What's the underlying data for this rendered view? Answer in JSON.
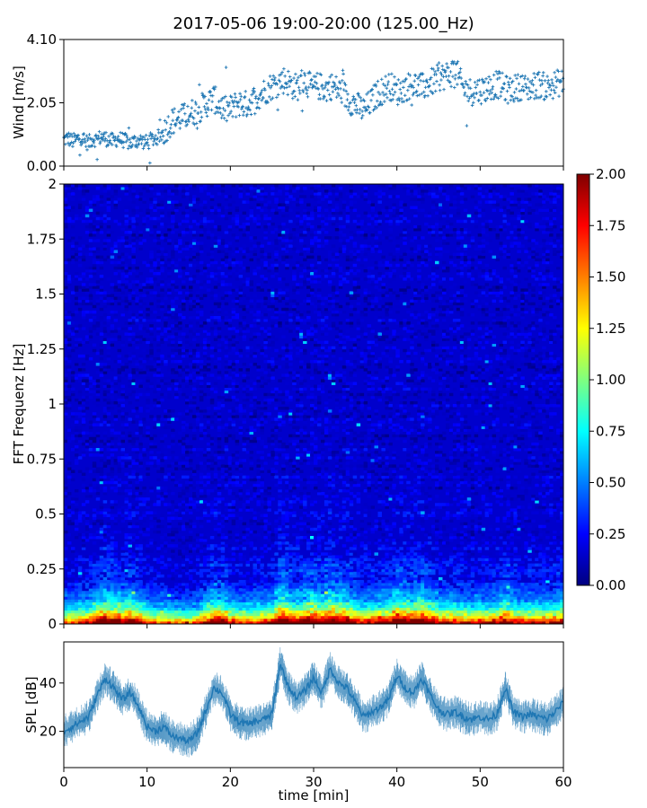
{
  "figure": {
    "title": "2017-05-06 19:00-20:00 (125.00_Hz)"
  },
  "chart_data": [
    {
      "type": "scatter",
      "panel": "wind",
      "ylabel": "Wind [m/s]",
      "xlim": [
        0,
        60
      ],
      "ylim": [
        0,
        4.1
      ],
      "yticks": [
        "0.00",
        "2.05",
        "4.10"
      ],
      "y_tick_values": [
        0,
        2.05,
        4.1
      ],
      "marker": "plus",
      "color": "#1f77b4",
      "x": [
        0,
        0.5,
        1,
        1.5,
        2,
        2.5,
        3,
        3.5,
        4,
        4.5,
        5,
        5.5,
        6,
        6.5,
        7,
        7.5,
        8,
        8.5,
        9,
        9.5,
        10,
        10.5,
        11,
        11.5,
        12,
        12.5,
        13,
        13.5,
        14,
        14.5,
        15,
        15.5,
        16,
        16.5,
        17,
        17.5,
        18,
        18.5,
        19,
        19.5,
        20,
        20.5,
        21,
        21.5,
        22,
        22.5,
        23,
        23.5,
        24,
        24.5,
        25,
        25.5,
        26,
        26.5,
        27,
        27.5,
        28,
        28.5,
        29,
        29.5,
        30,
        30.5,
        31,
        31.5,
        32,
        32.5,
        33,
        33.5,
        34,
        34.5,
        35,
        35.5,
        36,
        36.5,
        37,
        37.5,
        38,
        38.5,
        39,
        39.5,
        40,
        40.5,
        41,
        41.5,
        42,
        42.5,
        43,
        43.5,
        44,
        44.5,
        45,
        45.5,
        46,
        46.5,
        47,
        47.5,
        48,
        48.5,
        49,
        49.5,
        50,
        50.5,
        51,
        51.5,
        52,
        52.5,
        53,
        53.5,
        54,
        54.5,
        55,
        55.5,
        56,
        56.5,
        57,
        57.5,
        58,
        58.5,
        59,
        59.5,
        60
      ],
      "y": [
        0.85,
        0.9,
        0.8,
        0.85,
        0.95,
        0.8,
        0.75,
        0.9,
        0.85,
        0.95,
        0.9,
        0.85,
        0.8,
        0.9,
        0.85,
        0.8,
        0.75,
        0.8,
        0.85,
        0.8,
        0.75,
        0.85,
        0.9,
        0.95,
        1.1,
        1.3,
        1.45,
        1.5,
        1.55,
        1.6,
        1.7,
        1.75,
        1.8,
        1.9,
        2.0,
        2.1,
        2.2,
        2.0,
        1.9,
        1.8,
        1.85,
        1.95,
        2.05,
        2.0,
        2.0,
        2.1,
        2.2,
        2.3,
        2.4,
        2.5,
        2.6,
        2.65,
        2.75,
        2.8,
        2.7,
        2.6,
        2.55,
        2.7,
        2.8,
        2.6,
        2.5,
        2.6,
        2.55,
        2.5,
        2.6,
        2.55,
        2.45,
        2.4,
        2.2,
        2.1,
        2.0,
        1.9,
        1.8,
        1.95,
        2.1,
        2.3,
        2.4,
        2.5,
        2.6,
        2.55,
        2.4,
        2.45,
        2.55,
        2.6,
        2.65,
        2.6,
        2.55,
        2.6,
        2.7,
        2.75,
        2.85,
        2.9,
        2.95,
        3.0,
        3.2,
        2.8,
        2.5,
        2.45,
        2.4,
        2.5,
        2.45,
        2.5,
        2.55,
        2.6,
        2.65,
        2.6,
        2.5,
        2.45,
        2.5,
        2.55,
        2.6,
        2.5,
        2.55,
        2.6,
        2.65,
        2.6,
        2.55,
        2.6,
        2.65,
        2.7,
        2.7
      ]
    },
    {
      "type": "heatmap",
      "panel": "spectrogram",
      "ylabel": "FFT Frequenz [Hz]",
      "xlim": [
        0,
        60
      ],
      "ylim": [
        0,
        2
      ],
      "yticks": [
        "0",
        "0.25",
        "0.5",
        "0.75",
        "1",
        "1.25",
        "1.5",
        "1.75",
        "2"
      ],
      "y_tick_values": [
        0,
        0.25,
        0.5,
        0.75,
        1,
        1.25,
        1.5,
        1.75,
        2
      ],
      "colormap": "jet",
      "colorbar": {
        "range": [
          0,
          2
        ],
        "ticks": [
          "0.00",
          "0.25",
          "0.50",
          "0.75",
          "1.00",
          "1.25",
          "1.50",
          "1.75",
          "2.00"
        ],
        "tick_values": [
          0,
          0.25,
          0.5,
          0.75,
          1,
          1.25,
          1.5,
          1.75,
          2
        ],
        "stops": [
          "#00007f",
          "#0000ff",
          "#007fff",
          "#00ffff",
          "#7fff7f",
          "#ffff00",
          "#ff7f00",
          "#ff0000",
          "#7f0000"
        ]
      },
      "description_values": {
        "near_zero_hz_intensity": [
          1.5,
          2.0
        ],
        "high_frequency_intensity": [
          0.1,
          0.3
        ]
      }
    },
    {
      "type": "line",
      "panel": "spl",
      "ylabel": "SPL [dB]",
      "xlabel": "time [min]",
      "xlim": [
        0,
        60
      ],
      "ylim": [
        5,
        57
      ],
      "xticks": [
        "0",
        "10",
        "20",
        "30",
        "40",
        "50",
        "60"
      ],
      "x_tick_values": [
        0,
        10,
        20,
        30,
        40,
        50,
        60
      ],
      "yticks": [
        "20",
        "40"
      ],
      "y_tick_values": [
        20,
        40
      ],
      "color": "#1f77b4",
      "x": [
        0,
        1,
        2,
        3,
        4,
        5,
        6,
        7,
        8,
        9,
        10,
        11,
        12,
        13,
        14,
        15,
        16,
        17,
        18,
        19,
        20,
        21,
        22,
        23,
        24,
        25,
        26,
        27,
        28,
        29,
        30,
        31,
        32,
        33,
        34,
        35,
        36,
        37,
        38,
        39,
        40,
        41,
        42,
        43,
        44,
        45,
        46,
        47,
        48,
        49,
        50,
        51,
        52,
        53,
        54,
        55,
        56,
        57,
        58,
        59,
        60
      ],
      "y": [
        20,
        22,
        24,
        26,
        35,
        42,
        38,
        33,
        36,
        30,
        22,
        20,
        22,
        18,
        17,
        16,
        19,
        28,
        38,
        36,
        27,
        24,
        23,
        24,
        25,
        27,
        48,
        38,
        34,
        37,
        42,
        36,
        46,
        40,
        38,
        32,
        26,
        28,
        30,
        33,
        43,
        38,
        36,
        42,
        35,
        29,
        27,
        28,
        26,
        25,
        26,
        25,
        27,
        38,
        28,
        26,
        27,
        26,
        25,
        28,
        32
      ],
      "band": 6
    }
  ]
}
